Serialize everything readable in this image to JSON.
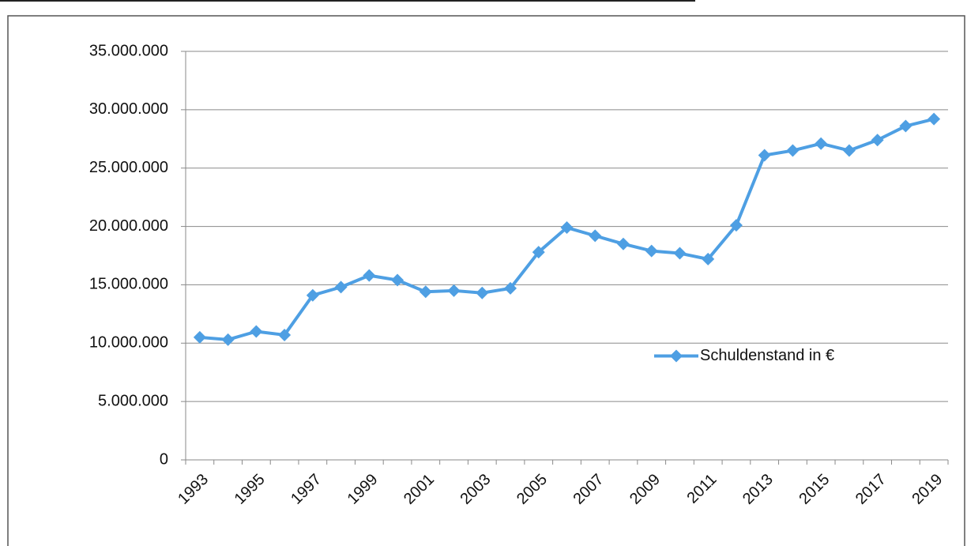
{
  "chart_data": {
    "type": "line",
    "categories": [
      "1993",
      null,
      "1995",
      null,
      "1997",
      null,
      "1999",
      null,
      "2001",
      null,
      "2003",
      null,
      "2005",
      null,
      "2007",
      null,
      "2009",
      null,
      "2011",
      null,
      "2013",
      null,
      "2015",
      null,
      "2017",
      null,
      "2019"
    ],
    "series": [
      {
        "name": "Schuldenstand in €",
        "color": "#4e9fe3",
        "values": [
          10500000,
          10300000,
          11000000,
          10700000,
          14100000,
          14800000,
          15800000,
          15400000,
          14400000,
          14500000,
          14300000,
          14700000,
          17800000,
          19900000,
          19200000,
          18500000,
          17900000,
          17700000,
          17200000,
          20100000,
          26100000,
          26500000,
          27100000,
          26500000,
          27400000,
          28600000,
          29200000
        ]
      }
    ],
    "ylim": [
      0,
      35000000
    ],
    "yticks": [
      0,
      {
        "value": 5000000,
        "label": "5.000.000"
      },
      {
        "value": 10000000,
        "label": "10.000.000"
      },
      {
        "value": 15000000,
        "label": "15.000.000"
      },
      {
        "value": 20000000,
        "label": "20.000.000"
      },
      {
        "value": 25000000,
        "label": "25.000.000"
      },
      {
        "value": 30000000,
        "label": "30.000.000"
      },
      {
        "value": 35000000,
        "label": "35.000.000"
      }
    ],
    "grid": true,
    "legend": "right"
  }
}
